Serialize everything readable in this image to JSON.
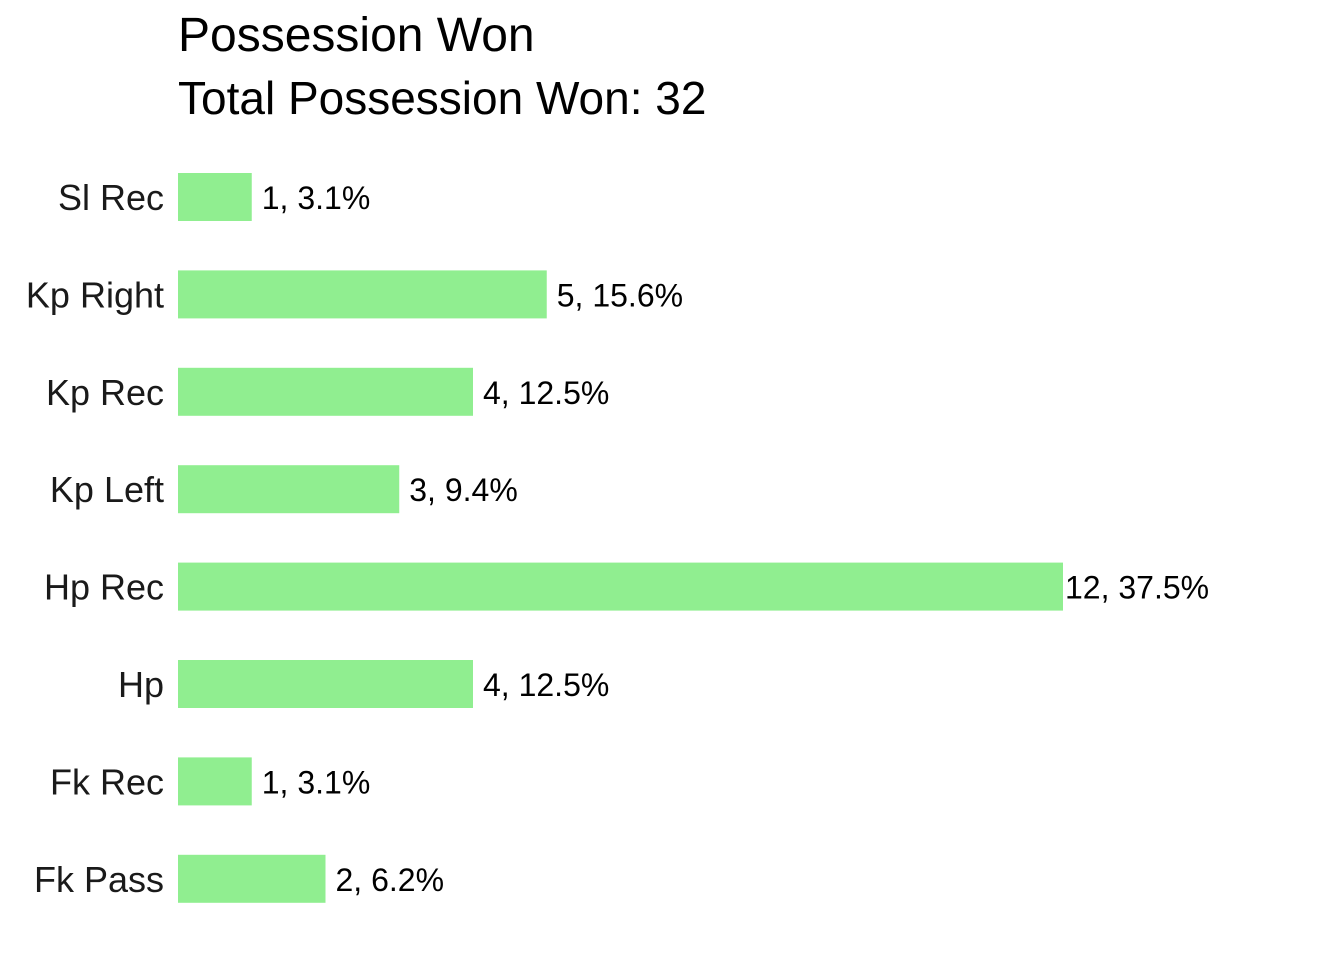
{
  "chart_data": {
    "type": "bar",
    "orientation": "horizontal",
    "title": "Possession Won",
    "subtitle": "Total Possession Won: 32",
    "categories": [
      "Sl Rec",
      "Kp Right",
      "Kp Rec",
      "Kp Left",
      "Hp Rec",
      "Hp",
      "Fk Rec",
      "Fk Pass"
    ],
    "values": [
      1,
      5,
      4,
      3,
      12,
      4,
      1,
      2
    ],
    "data_labels": [
      "1, 3.1%",
      "5, 15.6%",
      "4, 12.5%",
      "3, 9.4%",
      "12, 37.5%",
      "4, 12.5%",
      "1, 3.1%",
      "2, 6.2%"
    ],
    "bar_color": "#90EE90",
    "xlabel": "",
    "ylabel": "",
    "xlim": [
      0,
      12
    ],
    "grid": false,
    "legend": "none"
  }
}
